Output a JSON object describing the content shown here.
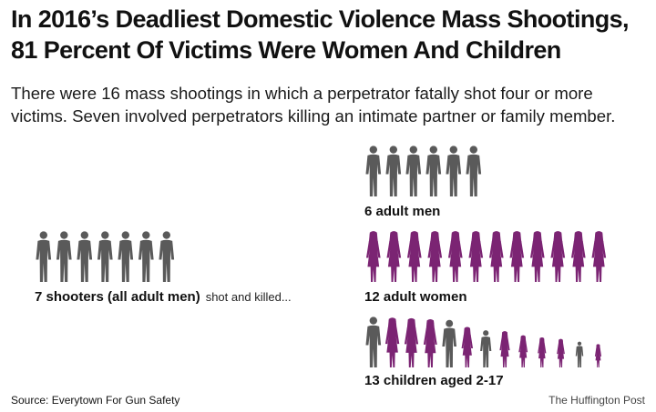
{
  "header": {
    "title_line1": "In 2016’s Deadliest Domestic Violence Mass Shootings,",
    "title_line2": "81 Percent Of Victims Were Women And Children",
    "subtitle_line1": "There were 16 mass shootings in which a perpetrator fatally shot four or more",
    "subtitle_line2": "victims. Seven involved perpetrators killing an intimate partner or family member."
  },
  "colors": {
    "men": "#5a5a5a",
    "women": "#7b2473"
  },
  "chart_data": {
    "type": "pictogram",
    "groups": [
      {
        "label": "7 shooters (all adult men)",
        "after_label": "shot and killed...",
        "count": 7,
        "category": "men"
      },
      {
        "label": "6 adult men",
        "count": 6,
        "category": "men"
      },
      {
        "label": "12 adult women",
        "count": 12,
        "category": "women"
      },
      {
        "label": "13 children aged 2-17",
        "count": 13,
        "category": "children",
        "composition": [
          "men",
          "women",
          "women",
          "women",
          "men",
          "women",
          "men",
          "women",
          "women",
          "women",
          "women",
          "men",
          "women"
        ]
      }
    ]
  },
  "footer": {
    "source": "Source: Everytown For Gun Safety",
    "credit": "The Huffington Post"
  }
}
